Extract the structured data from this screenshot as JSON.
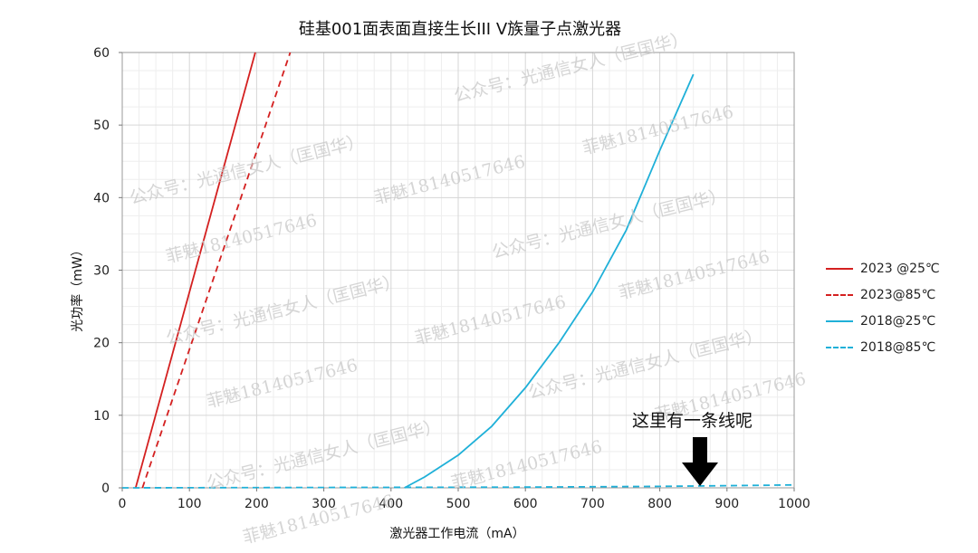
{
  "chart_data": {
    "type": "line",
    "title": "硅基001面表面直接生长III V族量子点激光器",
    "xlabel": "激光器工作电流（mA）",
    "ylabel": "光功率（mW）",
    "xlim": [
      0,
      1000
    ],
    "ylim": [
      0,
      60
    ],
    "xticks": [
      0,
      100,
      200,
      300,
      400,
      500,
      600,
      700,
      800,
      900,
      1000
    ],
    "yticks": [
      0,
      10,
      20,
      30,
      40,
      50,
      60
    ],
    "grid": true,
    "legend_position": "right",
    "series": [
      {
        "name": "2023 @25℃",
        "color": "#d42020",
        "dash": "solid",
        "x": [
          20,
          198
        ],
        "y": [
          0,
          60
        ]
      },
      {
        "name": "2023@85℃",
        "color": "#d42020",
        "dash": "dashed",
        "x": [
          30,
          250
        ],
        "y": [
          0,
          60
        ]
      },
      {
        "name": "2018@25℃",
        "color": "#1fb0d8",
        "dash": "solid",
        "x": [
          420,
          450,
          500,
          550,
          600,
          650,
          700,
          750,
          800,
          850
        ],
        "y": [
          0,
          1.5,
          4.5,
          8.5,
          13.8,
          20,
          27,
          35.5,
          46.5,
          57
        ]
      },
      {
        "name": "2018@85℃",
        "color": "#1fb0d8",
        "dash": "dashed",
        "x": [
          0,
          600,
          800,
          1000
        ],
        "y": [
          0,
          0.1,
          0.2,
          0.4
        ]
      }
    ],
    "annotation": {
      "text": "这里有一条线呢",
      "points_to": {
        "x": 860,
        "y": 0.3
      }
    }
  },
  "watermarks": [
    {
      "text": "公众号：光通信女人（匡国华）"
    },
    {
      "text": "菲魅18140517646"
    }
  ]
}
